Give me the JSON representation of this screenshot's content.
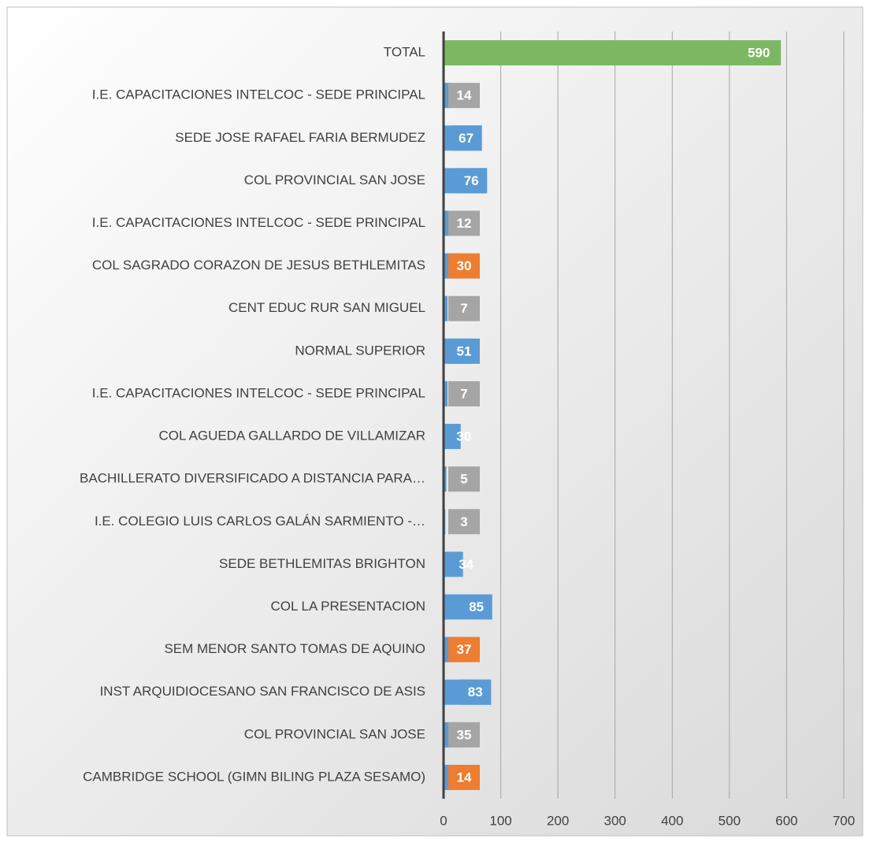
{
  "chart_data": {
    "type": "bar",
    "orientation": "horizontal",
    "categories": [
      "TOTAL",
      "I.E. CAPACITACIONES INTELCOC - SEDE PRINCIPAL",
      "SEDE JOSE RAFAEL FARIA BERMUDEZ",
      "COL PROVINCIAL SAN JOSE",
      "I.E. CAPACITACIONES INTELCOC - SEDE PRINCIPAL",
      "COL SAGRADO CORAZON DE JESUS BETHLEMITAS",
      "CENT EDUC RUR SAN MIGUEL",
      "NORMAL SUPERIOR",
      "I.E. CAPACITACIONES INTELCOC - SEDE PRINCIPAL",
      "COL AGUEDA GALLARDO DE VILLAMIZAR",
      "BACHILLERATO DIVERSIFICADO A DISTANCIA PARA…",
      "I.E. COLEGIO LUIS CARLOS GALÁN SARMIENTO -…",
      "SEDE BETHLEMITAS BRIGHTON",
      "COL LA PRESENTACION",
      "SEM MENOR SANTO TOMAS DE AQUINO",
      "INST ARQUIDIOCESANO SAN FRANCISCO DE ASIS",
      "COL PROVINCIAL SAN JOSE",
      "CAMBRIDGE SCHOOL (GIMN BILING PLAZA SESAMO)"
    ],
    "values": [
      590,
      14,
      67,
      76,
      12,
      30,
      7,
      51,
      7,
      30,
      5,
      3,
      34,
      85,
      37,
      83,
      35,
      14
    ],
    "colors": [
      "#7cb862",
      "#5b9bd5",
      "#5b9bd5",
      "#5b9bd5",
      "#5b9bd5",
      "#5b9bd5",
      "#5b9bd5",
      "#5b9bd5",
      "#5b9bd5",
      "#5b9bd5",
      "#5b9bd5",
      "#5b9bd5",
      "#5b9bd5",
      "#5b9bd5",
      "#5b9bd5",
      "#5b9bd5",
      "#5b9bd5",
      "#5b9bd5"
    ],
    "label_colors": [
      null,
      "#a5a5a5",
      "#5b9bd5",
      "#5b9bd5",
      "#a5a5a5",
      "#ed7d31",
      "#a5a5a5",
      "#5b9bd5",
      "#a5a5a5",
      null,
      "#a5a5a5",
      "#a5a5a5",
      null,
      "#5b9bd5",
      "#ed7d31",
      "#5b9bd5",
      "#a5a5a5",
      "#ed7d31"
    ],
    "xlim": [
      0,
      700
    ],
    "xticks": [
      0,
      100,
      200,
      300,
      400,
      500,
      600,
      700
    ],
    "grid": true
  }
}
